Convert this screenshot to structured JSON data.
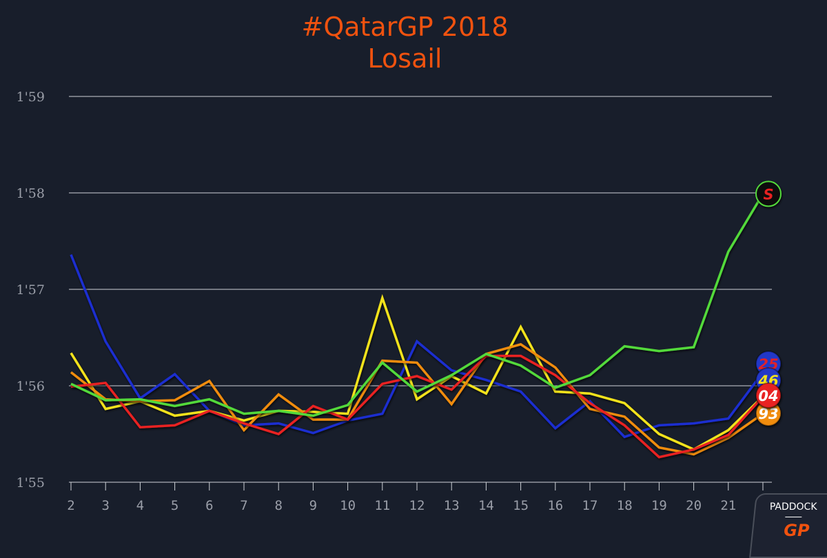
{
  "chart_data": {
    "type": "line",
    "title": "#QatarGP 2018",
    "subtitle": "Losail",
    "xlabel": "",
    "ylabel": "",
    "x": [
      2,
      3,
      4,
      5,
      6,
      7,
      8,
      9,
      10,
      11,
      12,
      13,
      14,
      15,
      16,
      17,
      18,
      19,
      20,
      21,
      22
    ],
    "x_tick_labels": [
      "2",
      "3",
      "4",
      "5",
      "6",
      "7",
      "8",
      "9",
      "10",
      "11",
      "12",
      "13",
      "14",
      "15",
      "16",
      "17",
      "18",
      "19",
      "20",
      "21",
      ""
    ],
    "y_ticks": [
      115,
      116,
      117,
      118,
      119
    ],
    "y_tick_labels": [
      "1'55",
      "1'56",
      "1'57",
      "1'58",
      "1'59"
    ],
    "ylim": [
      115,
      119
    ],
    "grid": true,
    "series": [
      {
        "name": "25",
        "color": "#1a2fd0",
        "badge_bg": "#2438c8",
        "badge_fg": "#e0202a",
        "values": [
          117.36,
          116.46,
          115.87,
          116.12,
          115.74,
          115.59,
          115.61,
          115.51,
          115.64,
          115.71,
          116.46,
          116.16,
          116.06,
          115.94,
          115.56,
          115.84,
          115.47,
          115.59,
          115.61,
          115.66,
          116.14
        ]
      },
      {
        "name": "46",
        "color": "#f2e21a",
        "badge_bg": "#2438c8",
        "badge_fg": "#f2e21a",
        "values": [
          116.34,
          115.76,
          115.84,
          115.69,
          115.74,
          115.64,
          115.74,
          115.73,
          115.71,
          116.91,
          115.86,
          116.1,
          115.92,
          116.61,
          115.94,
          115.92,
          115.82,
          115.5,
          115.34,
          115.54,
          115.89
        ]
      },
      {
        "name": "93",
        "color": "#f08c10",
        "badge_bg": "#f08c10",
        "badge_fg": "#ffffff",
        "values": [
          116.14,
          115.86,
          115.84,
          115.85,
          116.05,
          115.54,
          115.91,
          115.65,
          115.65,
          116.26,
          116.24,
          115.81,
          116.33,
          116.43,
          116.19,
          115.76,
          115.68,
          115.36,
          115.29,
          115.46,
          115.71
        ]
      },
      {
        "name": "04",
        "color": "#e82020",
        "badge_bg": "#e82020",
        "badge_fg": "#ffffff",
        "values": [
          115.99,
          116.03,
          115.57,
          115.59,
          115.74,
          115.61,
          115.5,
          115.79,
          115.65,
          116.02,
          116.1,
          115.96,
          116.31,
          116.31,
          116.11,
          115.82,
          115.59,
          115.26,
          115.34,
          115.49,
          115.89
        ]
      },
      {
        "name": "5",
        "color": "#52d93a",
        "badge_bg": "#101010",
        "badge_fg": "#e82020",
        "values": [
          116.02,
          115.85,
          115.86,
          115.79,
          115.86,
          115.71,
          115.74,
          115.69,
          115.8,
          116.24,
          115.94,
          116.11,
          116.33,
          116.21,
          115.98,
          116.11,
          116.41,
          116.36,
          116.4,
          117.39,
          117.99
        ]
      }
    ],
    "badge_labels": {
      "5": "S",
      "25": "25",
      "46": "46",
      "04": "04",
      "93": "93"
    }
  },
  "logo": {
    "top": "PADDOCK",
    "bottom": "GP"
  }
}
